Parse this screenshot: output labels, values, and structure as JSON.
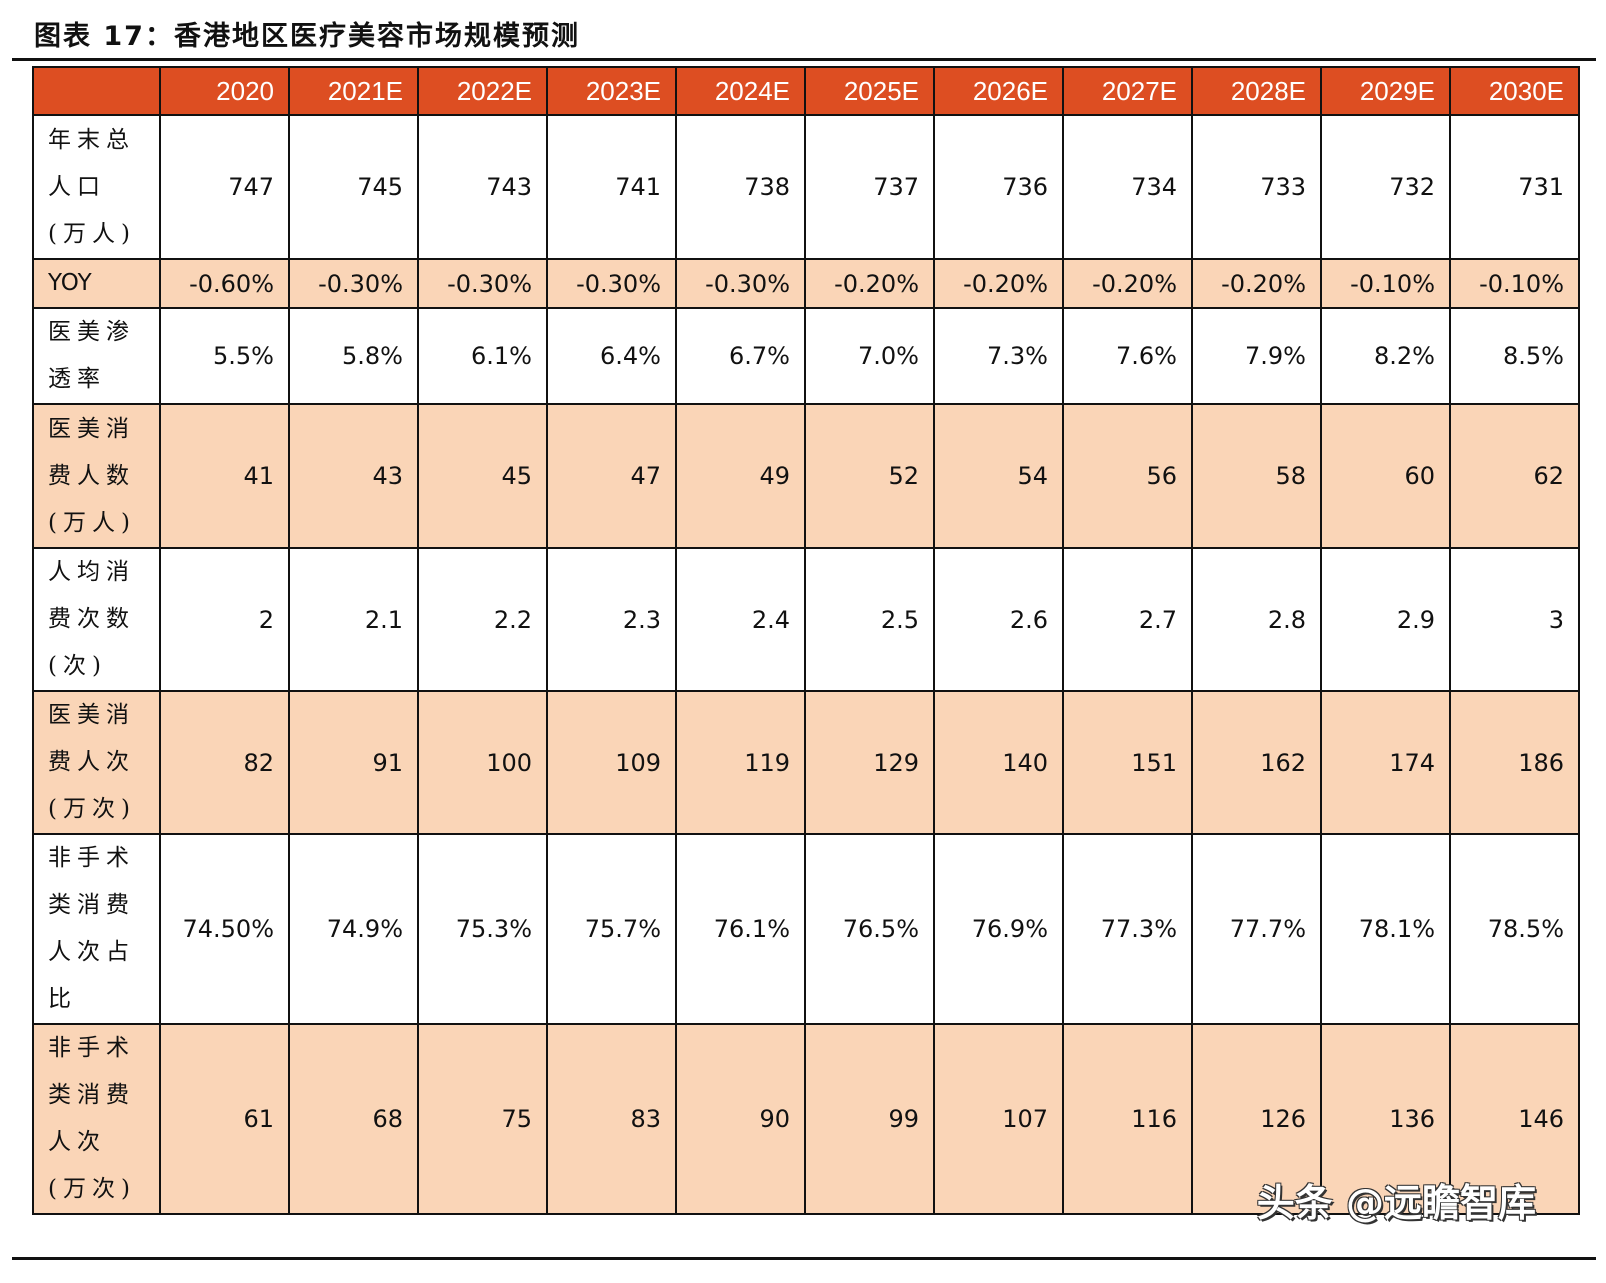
{
  "title": "图表 17：香港地区医疗美容市场规模预测",
  "colors": {
    "header": "#DD4E22",
    "alt_row": "#FAD5B7"
  },
  "headers": [
    "",
    "2020",
    "2021E",
    "2022E",
    "2023E",
    "2024E",
    "2025E",
    "2026E",
    "2027E",
    "2028E",
    "2029E",
    "2030E"
  ],
  "rows": [
    {
      "label": [
        "年末总",
        "人口",
        "(万人)"
      ],
      "values": [
        "747",
        "745",
        "743",
        "741",
        "738",
        "737",
        "736",
        "734",
        "733",
        "732",
        "731"
      ]
    },
    {
      "label": [
        "YOY"
      ],
      "values": [
        "-0.60%",
        "-0.30%",
        "-0.30%",
        "-0.30%",
        "-0.30%",
        "-0.20%",
        "-0.20%",
        "-0.20%",
        "-0.20%",
        "-0.10%",
        "-0.10%"
      ]
    },
    {
      "label": [
        "医美渗",
        "透率"
      ],
      "values": [
        "5.5%",
        "5.8%",
        "6.1%",
        "6.4%",
        "6.7%",
        "7.0%",
        "7.3%",
        "7.6%",
        "7.9%",
        "8.2%",
        "8.5%"
      ]
    },
    {
      "label": [
        "医美消",
        "费人数",
        "(万人)"
      ],
      "values": [
        "41",
        "43",
        "45",
        "47",
        "49",
        "52",
        "54",
        "56",
        "58",
        "60",
        "62"
      ]
    },
    {
      "label": [
        "人均消",
        "费次数",
        "(次)"
      ],
      "values": [
        "2",
        "2.1",
        "2.2",
        "2.3",
        "2.4",
        "2.5",
        "2.6",
        "2.7",
        "2.8",
        "2.9",
        "3"
      ]
    },
    {
      "label": [
        "医美消",
        "费人次",
        "(万次)"
      ],
      "values": [
        "82",
        "91",
        "100",
        "109",
        "119",
        "129",
        "140",
        "151",
        "162",
        "174",
        "186"
      ]
    },
    {
      "label": [
        "非手术",
        "类消费",
        "人次占",
        "比"
      ],
      "values": [
        "74.50%",
        "74.9%",
        "75.3%",
        "75.7%",
        "76.1%",
        "76.5%",
        "76.9%",
        "77.3%",
        "77.7%",
        "78.1%",
        "78.5%"
      ]
    },
    {
      "label": [
        "非手术",
        "类消费",
        "人次",
        "(万次)"
      ],
      "values": [
        "61",
        "68",
        "75",
        "83",
        "90",
        "99",
        "107",
        "116",
        "126",
        "136",
        "146"
      ]
    }
  ],
  "watermark": "头条 @远瞻智库"
}
